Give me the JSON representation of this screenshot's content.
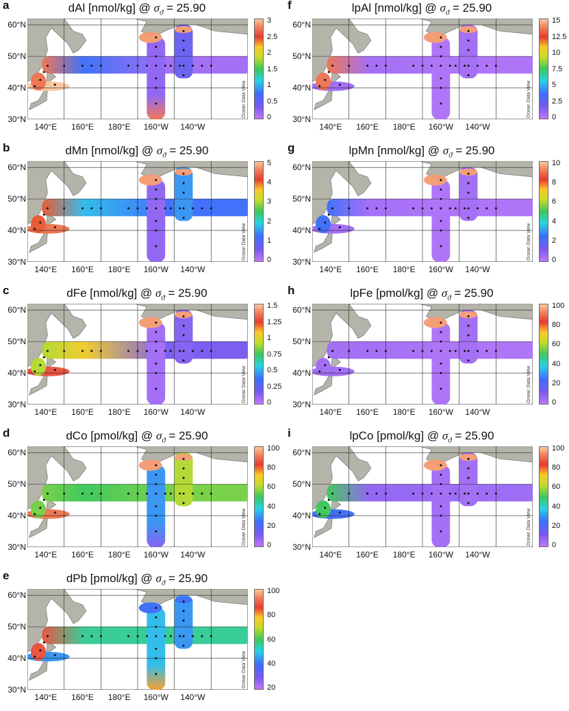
{
  "watermark": "Ocean Data View",
  "lat_labels": [
    "60°N",
    "50°N",
    "40°N",
    "30°N"
  ],
  "lon_labels": [
    "140°E",
    "160°E",
    "180°E",
    "160°W",
    "140°W"
  ],
  "panels": [
    {
      "id": "a",
      "label": "a",
      "title_pre": "dAl [nmol/kg] @ ",
      "sigma": "σ",
      "sub": "ϑ",
      "title_post": " = 25.90",
      "ticks": [
        "3",
        "2.5",
        "2",
        "1.5",
        "1",
        "0.5",
        "0"
      ],
      "field": {
        "japan": 0.9,
        "south": 1.0,
        "zonal_west": 0.25,
        "zonal_east": 0.05,
        "meridional": 0.08,
        "meridional_south": 0.9,
        "gulf": 0.95,
        "east_patch": 0.15
      }
    },
    {
      "id": "f",
      "label": "f",
      "title_pre": "lpAl [nmol/kg] @ ",
      "sigma": "σ",
      "sub": "ϑ",
      "title_post": " = 25.90",
      "ticks": [
        "15",
        "12.5",
        "10",
        "7.5",
        "5",
        "2.5",
        "0"
      ],
      "field": {
        "japan": 0.9,
        "south": 0.05,
        "zonal_west": 0.05,
        "zonal_east": 0.03,
        "meridional": 0.03,
        "meridional_south": 0.03,
        "gulf": 0.95,
        "east_patch": 0.05
      }
    },
    {
      "id": "b",
      "label": "b",
      "title_pre": "dMn [nmol/kg] @ ",
      "sigma": "σ",
      "sub": "ϑ",
      "title_post": " = 25.90",
      "ticks": [
        "5",
        "4",
        "3",
        "2",
        "1",
        "0"
      ],
      "field": {
        "japan": 0.8,
        "south": 0.9,
        "zonal_west": 0.35,
        "zonal_east": 0.25,
        "meridional": 0.08,
        "meridional_south": 0.08,
        "gulf": 0.95,
        "east_patch": 0.3
      }
    },
    {
      "id": "g",
      "label": "g",
      "title_pre": "lpMn [nmol/kg] @ ",
      "sigma": "σ",
      "sub": "ϑ",
      "title_post": " = 25.90",
      "ticks": [
        "10",
        "8",
        "6",
        "4",
        "2",
        "0"
      ],
      "field": {
        "japan": 0.25,
        "south": 0.05,
        "zonal_west": 0.05,
        "zonal_east": 0.03,
        "meridional": 0.03,
        "meridional_south": 0.03,
        "gulf": 0.95,
        "east_patch": 0.05
      }
    },
    {
      "id": "c",
      "label": "c",
      "title_pre": "dFe [nmol/kg] @ ",
      "sigma": "σ",
      "sub": "ϑ",
      "title_post": " = 25.90",
      "ticks": [
        "1.5",
        "1.25",
        "1",
        "0.75",
        "0.5",
        "0.25",
        "0"
      ],
      "field": {
        "japan": 0.6,
        "south": 0.85,
        "zonal_west": 0.7,
        "zonal_east": 0.12,
        "meridional": 0.05,
        "meridional_south": 0.05,
        "gulf": 0.95,
        "east_patch": 0.1
      }
    },
    {
      "id": "h",
      "label": "h",
      "title_pre": "lpFe [pmol/kg] @ ",
      "sigma": "σ",
      "sub": "ϑ",
      "title_post": " = 25.90",
      "ticks": [
        "100",
        "80",
        "60",
        "40",
        "20",
        "0"
      ],
      "field": {
        "japan": 0.05,
        "south": 0.05,
        "zonal_west": 0.05,
        "zonal_east": 0.03,
        "meridional": 0.03,
        "meridional_south": 0.03,
        "gulf": 0.95,
        "east_patch": 0.05
      }
    },
    {
      "id": "d",
      "label": "d",
      "title_pre": "dCo [pmol/kg] @ ",
      "sigma": "σ",
      "sub": "ϑ",
      "title_post": " = 25.90",
      "ticks": [
        "100",
        "80",
        "60",
        "40",
        "20",
        "0"
      ],
      "field": {
        "japan": 0.55,
        "south": 0.9,
        "zonal_west": 0.5,
        "zonal_east": 0.55,
        "meridional": 0.3,
        "meridional_south": 0.1,
        "gulf": 0.95,
        "east_patch": 0.6
      }
    },
    {
      "id": "i",
      "label": "i",
      "title_pre": "lpCo [pmol/kg] @ ",
      "sigma": "σ",
      "sub": "ϑ",
      "title_post": " = 25.90",
      "ticks": [
        "100",
        "80",
        "60",
        "40",
        "20",
        "0"
      ],
      "field": {
        "japan": 0.5,
        "south": 0.25,
        "zonal_west": 0.08,
        "zonal_east": 0.06,
        "meridional": 0.05,
        "meridional_south": 0.05,
        "gulf": 0.95,
        "east_patch": 0.05
      }
    },
    {
      "id": "e",
      "label": "e",
      "title_pre": "dPb [pmol/kg] @ ",
      "sigma": "σ",
      "sub": "ϑ",
      "title_post": " = 25.90",
      "ticks": [
        "100",
        "80",
        "60",
        "40",
        "20"
      ],
      "field": {
        "japan": 0.85,
        "south": 0.3,
        "zonal_west": 0.45,
        "zonal_east": 0.45,
        "meridional": 0.35,
        "meridional_south": 0.75,
        "gulf": 0.25,
        "east_patch": 0.3
      }
    }
  ]
}
